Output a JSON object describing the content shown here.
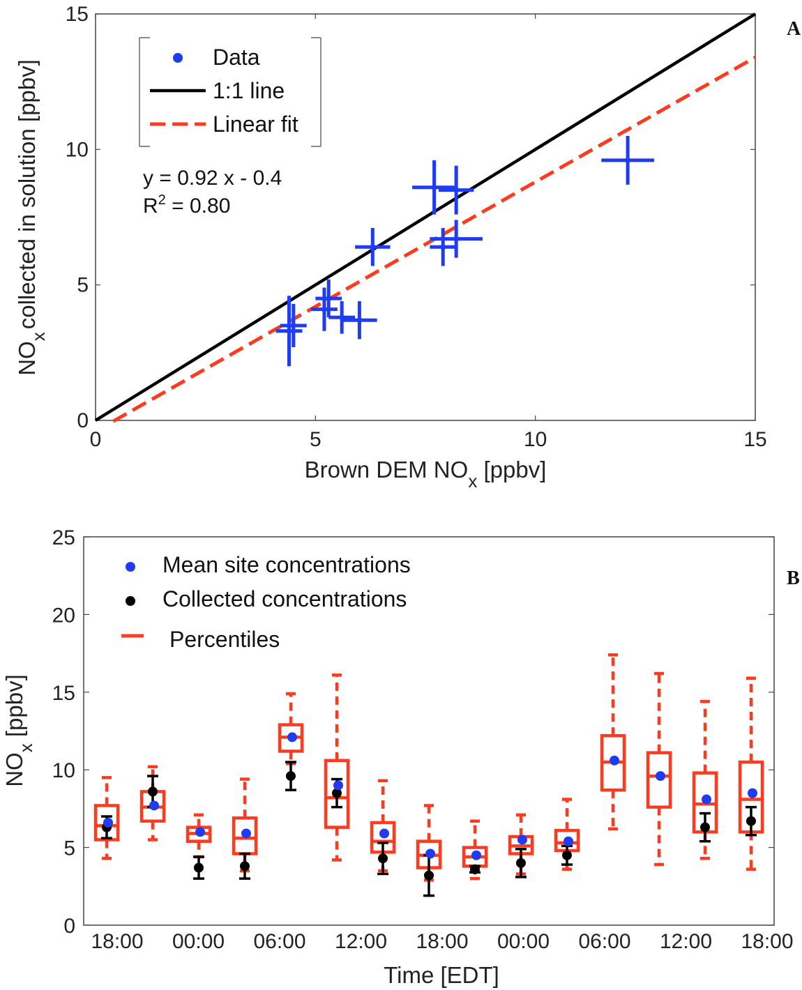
{
  "chart_data": [
    {
      "panel_label": "A",
      "type": "scatter",
      "xlabel": "Brown DEM NO",
      "xlabel_sub": "x",
      "xlabel_suffix": " [ppbv]",
      "ylabel": "NO",
      "ylabel_sub": "x",
      "ylabel_suffix": "collected in solution [ppbv]",
      "xlim": [
        0,
        15
      ],
      "ylim": [
        0,
        15
      ],
      "xticks": [
        0,
        5,
        10,
        15
      ],
      "yticks": [
        0,
        5,
        10,
        15
      ],
      "legend": {
        "placement": "top-left",
        "entries": [
          {
            "label": "Data",
            "color": "#1f3cf0",
            "style": "marker"
          },
          {
            "label": "1:1 line",
            "color": "#000000",
            "style": "solid"
          },
          {
            "label": "Linear fit",
            "color": "#ff3b1f",
            "style": "dashed"
          }
        ]
      },
      "annotation": {
        "equation": "y = 0.92 x - 0.4",
        "r2_label": "R",
        "r2_sup": "2",
        "r2_value": " = 0.80"
      },
      "one_to_one": {
        "slope": 1,
        "intercept": 0
      },
      "linear_fit": {
        "slope": 0.92,
        "intercept": -0.4,
        "x_range": [
          0.4,
          15
        ]
      },
      "points": [
        {
          "x": 4.4,
          "y": 3.3,
          "xerr": 0.3,
          "yerr": 1.3
        },
        {
          "x": 4.5,
          "y": 3.5,
          "xerr": 0.3,
          "yerr": 0.8
        },
        {
          "x": 5.2,
          "y": 4.1,
          "xerr": 0.3,
          "yerr": 0.8
        },
        {
          "x": 5.3,
          "y": 4.5,
          "xerr": 0.3,
          "yerr": 0.7
        },
        {
          "x": 5.6,
          "y": 3.8,
          "xerr": 0.3,
          "yerr": 0.6
        },
        {
          "x": 6.0,
          "y": 3.7,
          "xerr": 0.4,
          "yerr": 0.7
        },
        {
          "x": 6.3,
          "y": 6.4,
          "xerr": 0.4,
          "yerr": 0.7
        },
        {
          "x": 7.7,
          "y": 8.6,
          "xerr": 0.5,
          "yerr": 1.0
        },
        {
          "x": 8.2,
          "y": 8.5,
          "xerr": 0.4,
          "yerr": 0.9
        },
        {
          "x": 7.9,
          "y": 6.4,
          "xerr": 0.3,
          "yerr": 0.7
        },
        {
          "x": 8.2,
          "y": 6.7,
          "xerr": 0.6,
          "yerr": 0.7
        },
        {
          "x": 12.1,
          "y": 9.6,
          "xerr": 0.6,
          "yerr": 0.9
        }
      ]
    },
    {
      "panel_label": "B",
      "type": "box",
      "xlabel": "Time [EDT]",
      "ylabel": "NO",
      "ylabel_sub": "x",
      "ylabel_suffix": " [ppbv]",
      "ylim": [
        0,
        25
      ],
      "yticks": [
        0,
        5,
        10,
        15,
        20,
        25
      ],
      "xlim": [
        0,
        15
      ],
      "xtick_labels": [
        "18:00",
        "00:00",
        "06:00",
        "12:00",
        "18:00",
        "00:00",
        "06:00",
        "12:00",
        "18:00"
      ],
      "legend": {
        "placement": "top-left",
        "entries": [
          {
            "label": "Mean site concentrations",
            "color": "#1f3cf0",
            "style": "marker"
          },
          {
            "label": "Collected concentrations",
            "color": "#000000",
            "style": "marker"
          },
          {
            "label": "Percentiles",
            "color": "#ff3b1f",
            "style": "line"
          }
        ]
      },
      "boxes": [
        {
          "x": 0.5,
          "whislo": 4.3,
          "q1": 5.5,
          "med": 6.4,
          "q3": 7.7,
          "whishi": 9.5,
          "mean": 6.6,
          "collected": 6.3,
          "col_err": 0.7
        },
        {
          "x": 1.5,
          "whislo": 5.5,
          "q1": 6.7,
          "med": 7.6,
          "q3": 8.6,
          "whishi": 10.2,
          "mean": 7.7,
          "collected": 8.6,
          "col_err": 1.0
        },
        {
          "x": 2.5,
          "whislo": 4.4,
          "q1": 5.4,
          "med": 5.9,
          "q3": 6.3,
          "whishi": 7.1,
          "mean": 6.0,
          "collected": 3.7,
          "col_err": 0.7
        },
        {
          "x": 3.5,
          "whislo": 3.5,
          "q1": 4.6,
          "med": 5.6,
          "q3": 6.9,
          "whishi": 9.4,
          "mean": 5.9,
          "collected": 3.8,
          "col_err": 0.8
        },
        {
          "x": 4.5,
          "whislo": 10.4,
          "q1": 11.2,
          "med": 12.1,
          "q3": 12.9,
          "whishi": 14.9,
          "mean": 12.1,
          "collected": 9.6,
          "col_err": 0.9
        },
        {
          "x": 5.5,
          "whislo": 4.2,
          "q1": 6.3,
          "med": 8.2,
          "q3": 10.6,
          "whishi": 16.1,
          "mean": 9.0,
          "collected": 8.5,
          "col_err": 0.9
        },
        {
          "x": 6.5,
          "whislo": 3.5,
          "q1": 4.7,
          "med": 5.4,
          "q3": 6.6,
          "whishi": 9.3,
          "mean": 5.9,
          "collected": 4.3,
          "col_err": 1.0
        },
        {
          "x": 7.5,
          "whislo": 2.9,
          "q1": 3.7,
          "med": 4.5,
          "q3": 5.4,
          "whishi": 7.7,
          "mean": 4.6,
          "collected": 3.2,
          "col_err": 1.3
        },
        {
          "x": 8.5,
          "whislo": 3.0,
          "q1": 3.8,
          "med": 4.4,
          "q3": 5.0,
          "whishi": 6.7,
          "mean": 4.5,
          "collected": 3.6,
          "col_err": 0.2
        },
        {
          "x": 9.5,
          "whislo": 3.3,
          "q1": 4.6,
          "med": 5.1,
          "q3": 5.7,
          "whishi": 7.1,
          "mean": 5.5,
          "collected": 4.0,
          "col_err": 0.9
        },
        {
          "x": 10.5,
          "whislo": 3.6,
          "q1": 4.8,
          "med": 5.3,
          "q3": 6.1,
          "whishi": 8.1,
          "mean": 5.4,
          "collected": 4.5,
          "col_err": 0.6
        },
        {
          "x": 11.5,
          "whislo": 6.2,
          "q1": 8.7,
          "med": 10.5,
          "q3": 12.2,
          "whishi": 17.4,
          "mean": 10.6,
          "collected": null,
          "col_err": 0
        },
        {
          "x": 12.5,
          "whislo": 3.9,
          "q1": 7.6,
          "med": 9.6,
          "q3": 11.1,
          "whishi": 16.2,
          "mean": 9.6,
          "collected": null,
          "col_err": 0
        },
        {
          "x": 13.5,
          "whislo": 4.3,
          "q1": 6.0,
          "med": 7.8,
          "q3": 9.8,
          "whishi": 14.4,
          "mean": 8.1,
          "collected": 6.3,
          "col_err": 0.9
        },
        {
          "x": 14.5,
          "whislo": 3.6,
          "q1": 6.0,
          "med": 8.1,
          "q3": 10.5,
          "whishi": 15.9,
          "mean": 8.5,
          "collected": 6.7,
          "col_err": 0.9
        }
      ]
    }
  ]
}
